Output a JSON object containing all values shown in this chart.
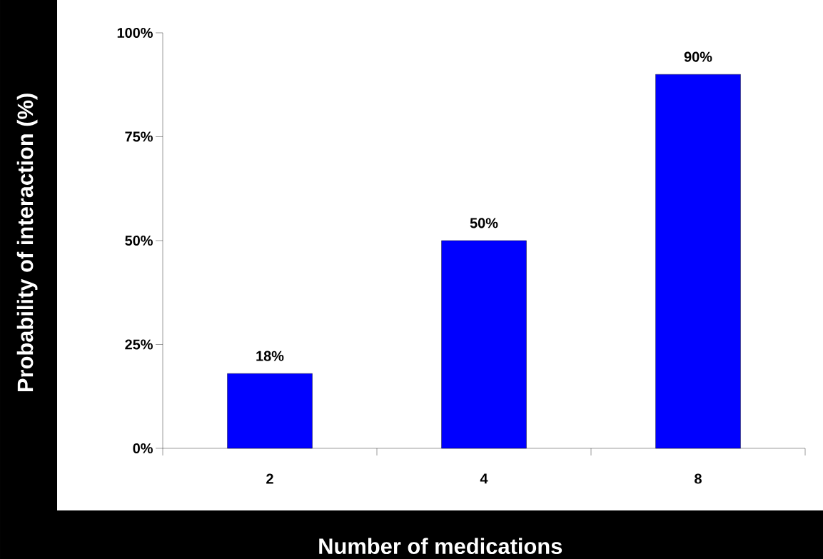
{
  "chart_data": {
    "type": "bar",
    "xlabel": "Number of medications",
    "ylabel": "Probability of interaction (%)",
    "categories": [
      "2",
      "4",
      "8"
    ],
    "values": [
      18,
      50,
      90
    ],
    "value_labels": [
      "18%",
      "50%",
      "90%"
    ],
    "color": "#0000ff",
    "ylim": [
      0,
      100
    ],
    "yticks": [
      {
        "value": 0,
        "label": "0%"
      },
      {
        "value": 25,
        "label": "25%"
      },
      {
        "value": 50,
        "label": "50%"
      },
      {
        "value": 75,
        "label": "75%"
      },
      {
        "value": 100,
        "label": "100%"
      }
    ],
    "grid": false
  }
}
